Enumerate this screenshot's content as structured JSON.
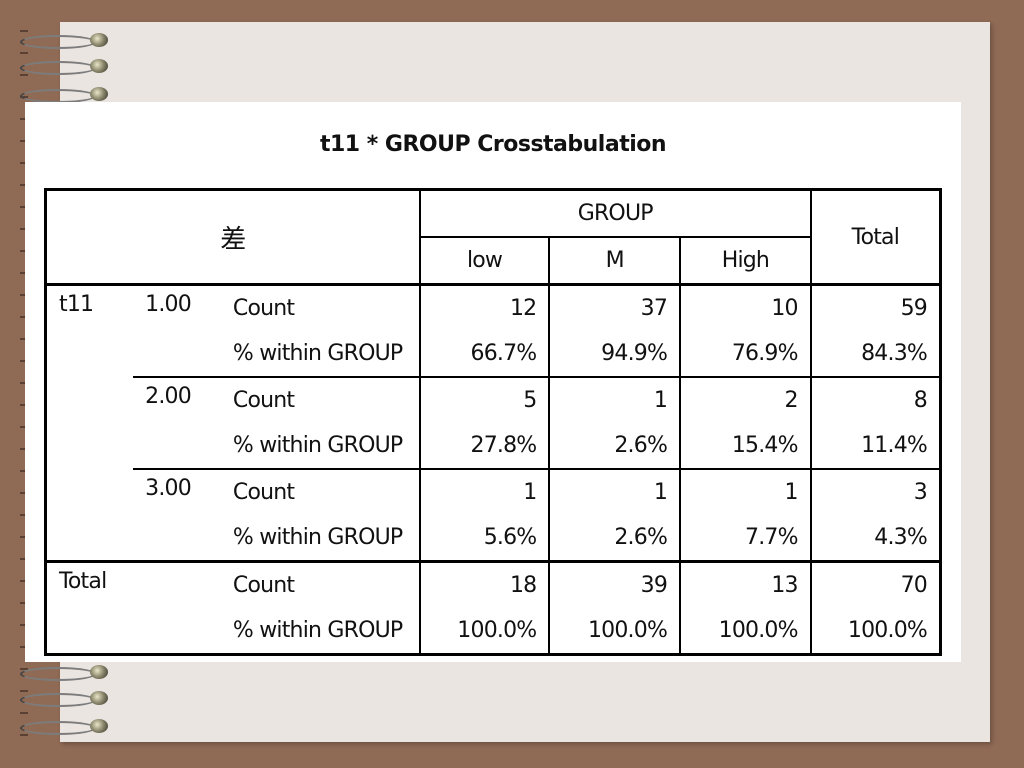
{
  "table": {
    "title": "t11 * GROUP Crosstabulation",
    "corner_label": "差",
    "group_header": "GROUP",
    "columns": [
      "low",
      "M",
      "High"
    ],
    "total_header": "Total",
    "row_var": "t11",
    "rows": [
      {
        "value": "1.00",
        "count_label": "Count",
        "pct_label": "% within GROUP",
        "counts": [
          "12",
          "37",
          "10",
          "59"
        ],
        "pcts": [
          "66.7%",
          "94.9%",
          "76.9%",
          "84.3%"
        ]
      },
      {
        "value": "2.00",
        "count_label": "Count",
        "pct_label": "% within GROUP",
        "counts": [
          "5",
          "1",
          "2",
          "8"
        ],
        "pcts": [
          "27.8%",
          "2.6%",
          "15.4%",
          "11.4%"
        ]
      },
      {
        "value": "3.00",
        "count_label": "Count",
        "pct_label": "% within GROUP",
        "counts": [
          "1",
          "1",
          "1",
          "3"
        ],
        "pcts": [
          "5.6%",
          "2.6%",
          "7.7%",
          "4.3%"
        ]
      }
    ],
    "total": {
      "label": "Total",
      "count_label": "Count",
      "pct_label": "% within GROUP",
      "counts": [
        "18",
        "39",
        "13",
        "70"
      ],
      "pcts": [
        "100.0%",
        "100.0%",
        "100.0%",
        "100.0%"
      ]
    }
  }
}
